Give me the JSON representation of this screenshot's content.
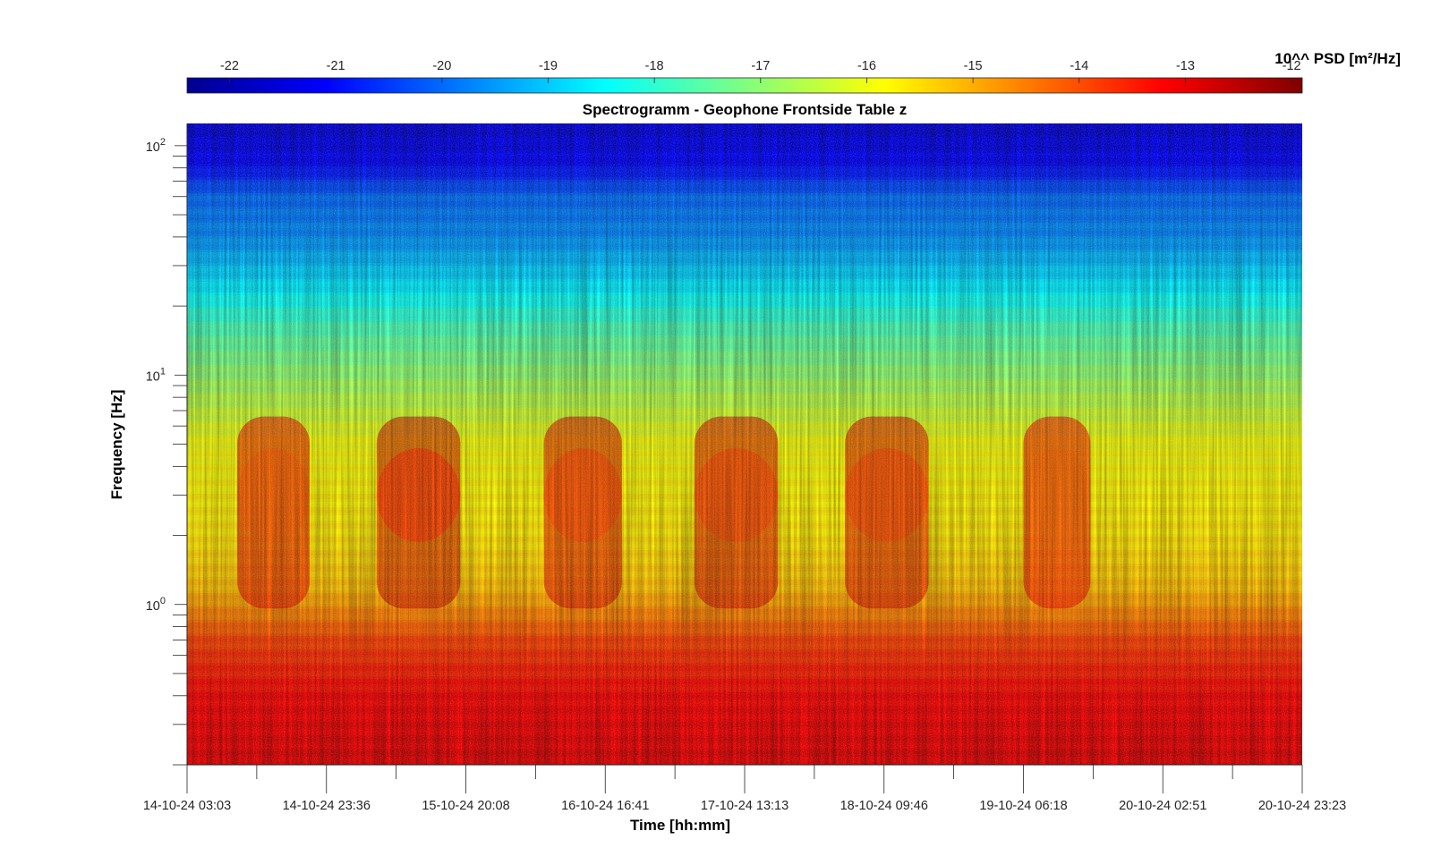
{
  "chart_data": {
    "type": "heatmap",
    "title": "Spectrogramm - Geophone Frontside Table z",
    "xlabel": "Time [hh:mm]",
    "ylabel": "Frequency [Hz]",
    "y_scale": "log",
    "ylim": [
      0.2,
      125
    ],
    "x_tick_labels": [
      "14-10-24 03:03",
      "14-10-24 23:36",
      "15-10-24 20:08",
      "16-10-24 16:41",
      "17-10-24 13:13",
      "18-10-24 09:46",
      "19-10-24 06:18",
      "20-10-24 02:51",
      "20-10-24 23:23"
    ],
    "y_ticks": [
      {
        "base": "10",
        "exp": "0",
        "value": 1
      },
      {
        "base": "10",
        "exp": "1",
        "value": 10
      },
      {
        "base": "10",
        "exp": "2",
        "value": 100
      }
    ],
    "colorbar": {
      "label": "10^^ PSD [m²/Hz]",
      "min": -22.4,
      "max": -11.9,
      "ticks": [
        "-22",
        "-21",
        "-20",
        "-19",
        "-18",
        "-17",
        "-16",
        "-15",
        "-14",
        "-13",
        "-12"
      ],
      "colormap": "jet"
    },
    "z_profile_by_frequency": [
      {
        "f": 125,
        "z": -21.5
      },
      {
        "f": 80,
        "z": -21.0
      },
      {
        "f": 60,
        "z": -20.0
      },
      {
        "f": 40,
        "z": -19.6
      },
      {
        "f": 25,
        "z": -18.7
      },
      {
        "f": 15,
        "z": -17.6
      },
      {
        "f": 8,
        "z": -16.6
      },
      {
        "f": 5,
        "z": -15.9
      },
      {
        "f": 2,
        "z": -15.6
      },
      {
        "f": 1.2,
        "z": -15.2
      },
      {
        "f": 1.0,
        "z": -14.8
      },
      {
        "f": 0.7,
        "z": -13.9
      },
      {
        "f": 0.4,
        "z": -13.2
      },
      {
        "f": 0.2,
        "z": -12.9
      }
    ],
    "activity_bursts": [
      {
        "t_start": 0.045,
        "t_end": 0.11,
        "f_center": 3,
        "z_peak": -14.2
      },
      {
        "t_start": 0.17,
        "t_end": 0.245,
        "f_center": 3,
        "z_peak": -13.8
      },
      {
        "t_start": 0.32,
        "t_end": 0.39,
        "f_center": 3,
        "z_peak": -14.0
      },
      {
        "t_start": 0.455,
        "t_end": 0.53,
        "f_center": 3,
        "z_peak": -14.0
      },
      {
        "t_start": 0.59,
        "t_end": 0.665,
        "f_center": 3,
        "z_peak": -14.0
      },
      {
        "t_start": 0.75,
        "t_end": 0.81,
        "f_center": 3,
        "z_peak": -14.3
      }
    ]
  }
}
